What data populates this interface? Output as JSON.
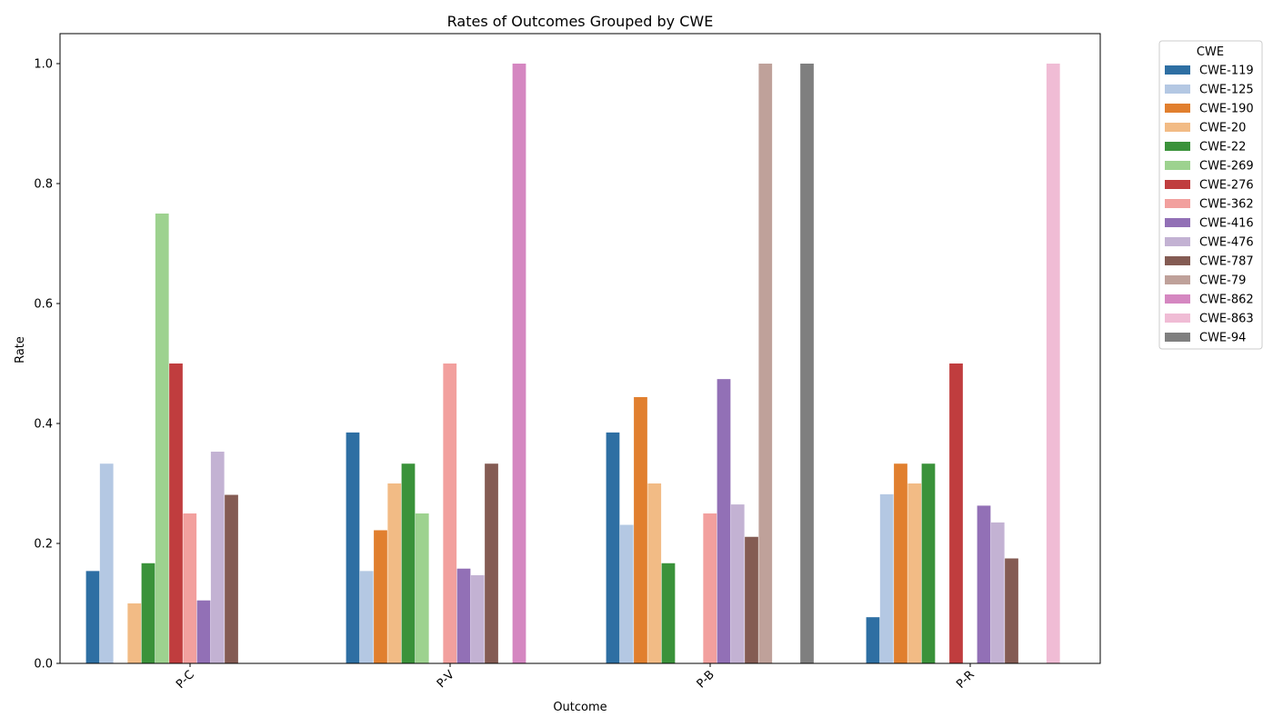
{
  "chart_data": {
    "type": "bar",
    "title": "Rates of Outcomes Grouped by CWE",
    "xlabel": "Outcome",
    "ylabel": "Rate",
    "categories": [
      "P-C",
      "P-V",
      "P-B",
      "P-R"
    ],
    "ylim": [
      0,
      1.05
    ],
    "yticks": [
      "0.0",
      "0.2",
      "0.4",
      "0.6",
      "0.8",
      "1.0"
    ],
    "grid": false,
    "legend": {
      "title": "CWE",
      "placement": "outside-right-top"
    },
    "series": [
      {
        "name": "CWE-119",
        "color": "#2e6fa3",
        "values": [
          0.154,
          0.385,
          0.385,
          0.077
        ]
      },
      {
        "name": "CWE-125",
        "color": "#b4c8e3",
        "values": [
          0.333,
          0.154,
          0.231,
          0.282
        ]
      },
      {
        "name": "CWE-190",
        "color": "#e17f2e",
        "values": [
          0,
          0.222,
          0.444,
          0.333
        ]
      },
      {
        "name": "CWE-20",
        "color": "#f2bb85",
        "values": [
          0.1,
          0.3,
          0.3,
          0.3
        ]
      },
      {
        "name": "CWE-22",
        "color": "#3a923a",
        "values": [
          0.167,
          0.333,
          0.167,
          0.333
        ]
      },
      {
        "name": "CWE-269",
        "color": "#9dd28f",
        "values": [
          0.75,
          0.25,
          0,
          0
        ]
      },
      {
        "name": "CWE-276",
        "color": "#c03d3e",
        "values": [
          0.5,
          0,
          0,
          0.5
        ]
      },
      {
        "name": "CWE-362",
        "color": "#f2a09e",
        "values": [
          0.25,
          0.5,
          0.25,
          0
        ]
      },
      {
        "name": "CWE-416",
        "color": "#9270b6",
        "values": [
          0.105,
          0.158,
          0.474,
          0.263
        ]
      },
      {
        "name": "CWE-476",
        "color": "#c3b2d3",
        "values": [
          0.353,
          0.147,
          0.265,
          0.235
        ]
      },
      {
        "name": "CWE-787",
        "color": "#845b53",
        "values": [
          0.281,
          0.333,
          0.211,
          0.175
        ]
      },
      {
        "name": "CWE-79",
        "color": "#bfa19a",
        "values": [
          0,
          0,
          1.0,
          0
        ]
      },
      {
        "name": "CWE-862",
        "color": "#d587c1",
        "values": [
          0,
          1.0,
          0,
          0
        ]
      },
      {
        "name": "CWE-863",
        "color": "#f0bcd5",
        "values": [
          0,
          0,
          0,
          1.0
        ]
      },
      {
        "name": "CWE-94",
        "color": "#7f7f7f",
        "values": [
          0,
          0,
          1.0,
          0
        ]
      }
    ]
  }
}
